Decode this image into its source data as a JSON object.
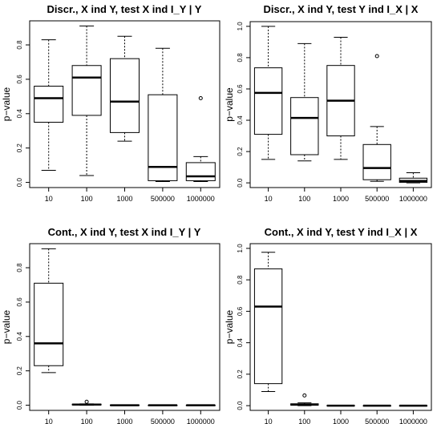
{
  "chart_data": [
    {
      "type": "box",
      "title": "Discr., X ind Y, test X ind I_Y | Y",
      "xlabel": "",
      "ylabel": "p−value",
      "categories": [
        "10",
        "100",
        "1000",
        "500000",
        "1000000"
      ],
      "y_ticks": [
        "0.0",
        "0.2",
        "0.4",
        "0.6",
        "0.8"
      ],
      "ylim": [
        -0.03,
        0.94
      ],
      "tick_values": [
        0,
        0.2,
        0.4,
        0.6,
        0.8
      ],
      "boxes": [
        {
          "min": 0.07,
          "q1": 0.35,
          "median": 0.49,
          "q3": 0.56,
          "max": 0.83,
          "outliers": []
        },
        {
          "min": 0.04,
          "q1": 0.39,
          "median": 0.61,
          "q3": 0.68,
          "max": 0.91,
          "outliers": []
        },
        {
          "min": 0.24,
          "q1": 0.29,
          "median": 0.47,
          "q3": 0.72,
          "max": 0.85,
          "outliers": []
        },
        {
          "min": 0.005,
          "q1": 0.01,
          "median": 0.09,
          "q3": 0.51,
          "max": 0.78,
          "outliers": []
        },
        {
          "min": 0.005,
          "q1": 0.01,
          "median": 0.035,
          "q3": 0.115,
          "max": 0.15,
          "outliers": [
            0.49
          ]
        }
      ]
    },
    {
      "type": "box",
      "title": "Discr., X ind Y, test Y ind I_X | X",
      "xlabel": "",
      "ylabel": "p−value",
      "categories": [
        "10",
        "100",
        "1000",
        "500000",
        "1000000"
      ],
      "y_ticks": [
        "0.0",
        "0.2",
        "0.4",
        "0.6",
        "0.8",
        "1.0"
      ],
      "ylim": [
        -0.03,
        1.03
      ],
      "tick_values": [
        0,
        0.2,
        0.4,
        0.6,
        0.8,
        1.0
      ],
      "boxes": [
        {
          "min": 0.15,
          "q1": 0.31,
          "median": 0.575,
          "q3": 0.735,
          "max": 1.0,
          "outliers": []
        },
        {
          "min": 0.14,
          "q1": 0.18,
          "median": 0.415,
          "q3": 0.545,
          "max": 0.89,
          "outliers": []
        },
        {
          "min": 0.15,
          "q1": 0.3,
          "median": 0.525,
          "q3": 0.75,
          "max": 0.93,
          "outliers": []
        },
        {
          "min": 0.01,
          "q1": 0.02,
          "median": 0.095,
          "q3": 0.245,
          "max": 0.36,
          "outliers": [
            0.81
          ]
        },
        {
          "min": 0.0,
          "q1": 0.003,
          "median": 0.012,
          "q3": 0.03,
          "max": 0.065,
          "outliers": []
        }
      ]
    },
    {
      "type": "box",
      "title": "Cont., X ind Y, test X ind I_Y | Y",
      "xlabel": "",
      "ylabel": "p−value",
      "categories": [
        "10",
        "100",
        "1000",
        "500000",
        "1000000"
      ],
      "y_ticks": [
        "0.0",
        "0.2",
        "0.4",
        "0.6",
        "0.8"
      ],
      "ylim": [
        -0.03,
        0.94
      ],
      "tick_values": [
        0,
        0.2,
        0.4,
        0.6,
        0.8
      ],
      "boxes": [
        {
          "min": 0.19,
          "q1": 0.23,
          "median": 0.36,
          "q3": 0.71,
          "max": 0.91,
          "outliers": []
        },
        {
          "min": 0.0,
          "q1": 0.002,
          "median": 0.004,
          "q3": 0.006,
          "max": 0.008,
          "outliers": [
            0.02
          ]
        },
        {
          "min": 0.0,
          "q1": 0.0,
          "median": 0.0,
          "q3": 0.001,
          "max": 0.002,
          "outliers": []
        },
        {
          "min": 0.0,
          "q1": 0.0,
          "median": 0.0,
          "q3": 0.0,
          "max": 0.0,
          "outliers": []
        },
        {
          "min": 0.0,
          "q1": 0.0,
          "median": 0.0,
          "q3": 0.0,
          "max": 0.0,
          "outliers": []
        }
      ]
    },
    {
      "type": "box",
      "title": "Cont., X ind Y, test Y ind I_X | X",
      "xlabel": "",
      "ylabel": "p−value",
      "categories": [
        "10",
        "100",
        "1000",
        "500000",
        "1000000"
      ],
      "y_ticks": [
        "0.0",
        "0.2",
        "0.4",
        "0.6",
        "0.8",
        "1.0"
      ],
      "ylim": [
        -0.03,
        1.03
      ],
      "tick_values": [
        0,
        0.2,
        0.4,
        0.6,
        0.8,
        1.0
      ],
      "boxes": [
        {
          "min": 0.09,
          "q1": 0.14,
          "median": 0.63,
          "q3": 0.87,
          "max": 0.975,
          "outliers": []
        },
        {
          "min": 0.0,
          "q1": 0.003,
          "median": 0.006,
          "q3": 0.012,
          "max": 0.018,
          "outliers": [
            0.065
          ]
        },
        {
          "min": 0.0,
          "q1": 0.0,
          "median": 0.0,
          "q3": 0.001,
          "max": 0.002,
          "outliers": []
        },
        {
          "min": 0.0,
          "q1": 0.0,
          "median": 0.0,
          "q3": 0.0,
          "max": 0.0,
          "outliers": []
        },
        {
          "min": 0.0,
          "q1": 0.0,
          "median": 0.0,
          "q3": 0.0,
          "max": 0.0,
          "outliers": []
        }
      ]
    }
  ]
}
